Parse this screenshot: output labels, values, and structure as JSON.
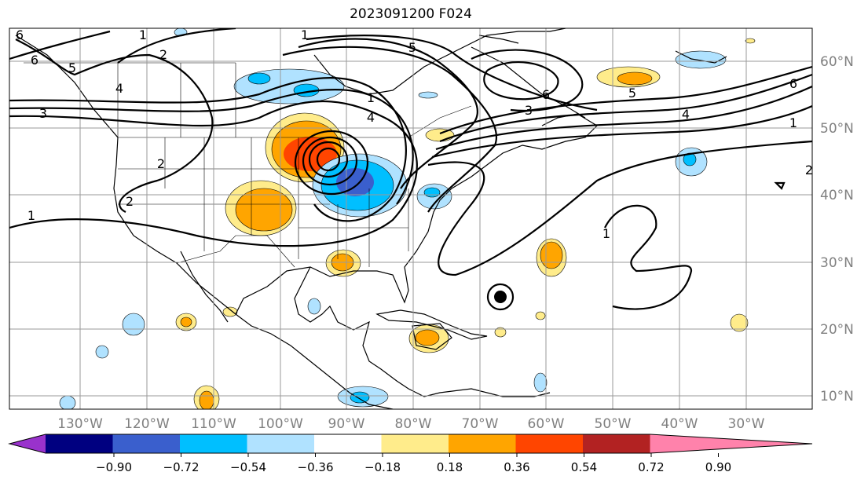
{
  "title": "2023091200 F024",
  "longitude_labels": [
    "130°W",
    "120°W",
    "110°W",
    "100°W",
    "90°W",
    "80°W",
    "70°W",
    "60°W",
    "50°W",
    "40°W",
    "30°W"
  ],
  "latitude_labels": [
    "60°N",
    "50°N",
    "40°N",
    "30°N",
    "20°N",
    "10°N"
  ],
  "colorbar": {
    "colors": [
      "#9932cc",
      "#000080",
      "#3a5fcd",
      "#00bfff",
      "#b0e2ff",
      "#ffffff",
      "#ffec8b",
      "#ffa500",
      "#ff4500",
      "#b22222",
      "#ff82ab"
    ],
    "tick_labels": [
      "−0.90",
      "−0.72",
      "−0.54",
      "−0.36",
      "−0.18",
      "0.18",
      "0.36",
      "0.54",
      "0.72",
      "0.90"
    ]
  },
  "contour_labels": [
    "6",
    "6",
    "5",
    "4",
    "3",
    "2",
    "1",
    "2",
    "1",
    "2",
    "1",
    "4",
    "5",
    "6",
    "5",
    "4",
    "1",
    "6",
    "1",
    "2",
    "1",
    "3"
  ]
}
